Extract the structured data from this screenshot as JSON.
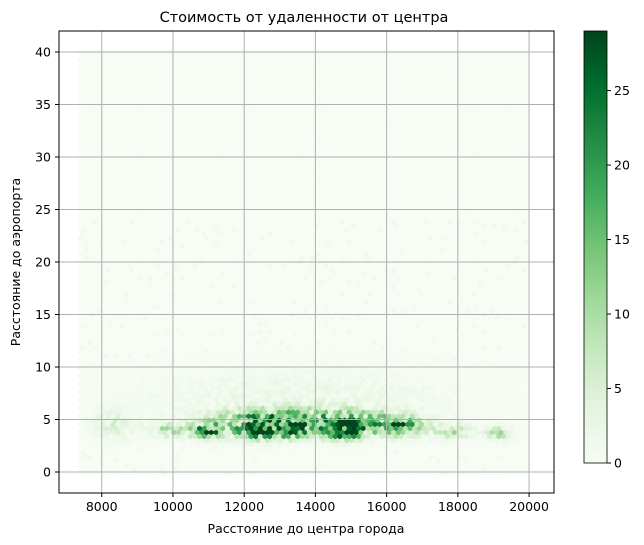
{
  "chart_data": {
    "type": "heatmap",
    "subtype": "hexbin",
    "title": "Стоимость от удаленности от центра",
    "xlabel": "Расстояние до центра города",
    "ylabel": "Расстояние до аэропорта",
    "xlim": [
      6800,
      20700
    ],
    "ylim": [
      -2,
      42
    ],
    "xticks": [
      8000,
      10000,
      12000,
      14000,
      16000,
      18000,
      20000
    ],
    "yticks": [
      0,
      5,
      10,
      15,
      20,
      25,
      30,
      35,
      40
    ],
    "grid": true,
    "colormap": "Greens",
    "colorbar": {
      "min": 0,
      "max": 29,
      "ticks": [
        0,
        5,
        10,
        15,
        20,
        25
      ]
    },
    "hexbin_extent": {
      "x": [
        7400,
        20000
      ],
      "y": [
        -0.5,
        40
      ]
    },
    "density_clusters": [
      {
        "x": 11000,
        "y": 4.0,
        "sx": 300,
        "sy": 0.5,
        "peak": 22
      },
      {
        "x": 12400,
        "y": 4.0,
        "sx": 500,
        "sy": 0.6,
        "peak": 26
      },
      {
        "x": 13400,
        "y": 4.0,
        "sx": 400,
        "sy": 0.5,
        "peak": 20
      },
      {
        "x": 14800,
        "y": 4.0,
        "sx": 400,
        "sy": 0.6,
        "peak": 29
      },
      {
        "x": 16300,
        "y": 4.3,
        "sx": 450,
        "sy": 0.6,
        "peak": 18
      },
      {
        "x": 12500,
        "y": 5.2,
        "sx": 900,
        "sy": 0.6,
        "peak": 10
      },
      {
        "x": 14500,
        "y": 5.0,
        "sx": 1200,
        "sy": 0.7,
        "peak": 11
      },
      {
        "x": 9900,
        "y": 4.0,
        "sx": 500,
        "sy": 0.5,
        "peak": 7
      },
      {
        "x": 17800,
        "y": 3.8,
        "sx": 400,
        "sy": 0.5,
        "peak": 7
      },
      {
        "x": 19200,
        "y": 3.7,
        "sx": 250,
        "sy": 0.4,
        "peak": 9
      },
      {
        "x": 8300,
        "y": 4.5,
        "sx": 350,
        "sy": 1.0,
        "peak": 4
      },
      {
        "x": 13500,
        "y": 7.0,
        "sx": 3000,
        "sy": 2.0,
        "peak": 2
      }
    ]
  }
}
